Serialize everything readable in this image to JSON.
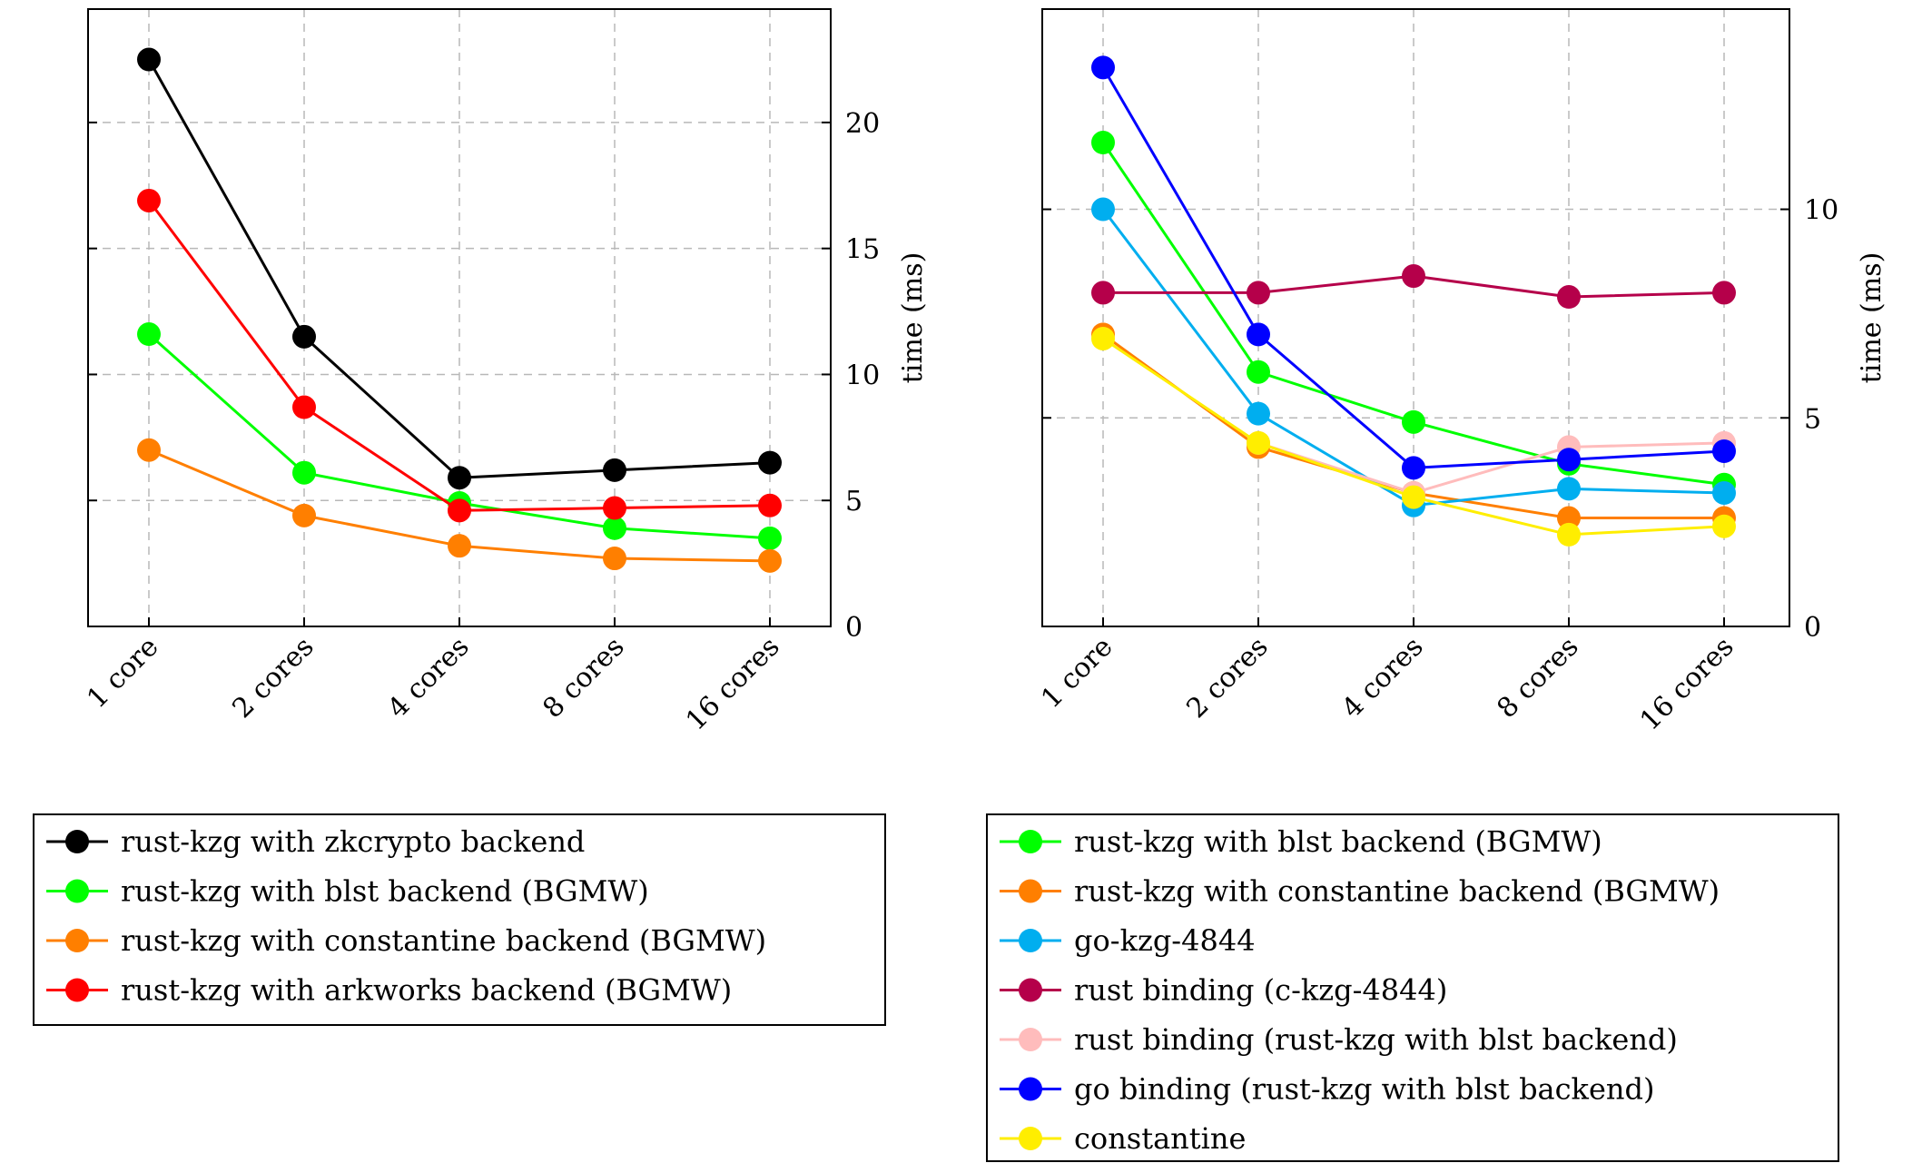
{
  "chart_data": [
    {
      "type": "line",
      "categories": [
        "1 core",
        "2 cores",
        "4 cores",
        "8 cores",
        "16 cores"
      ],
      "ylabel": "time (ms)",
      "ylim": [
        0,
        24.5
      ],
      "yticks": [
        0,
        5,
        10,
        15,
        20
      ],
      "grid": true,
      "legend_position": "below",
      "series": [
        {
          "name": "rust-kzg with zkcrypto backend",
          "color": "#000000",
          "values": [
            22.5,
            11.5,
            5.9,
            6.2,
            6.5
          ]
        },
        {
          "name": "rust-kzg with blst backend (BGMW)",
          "color": "#00ff00",
          "values": [
            11.6,
            6.1,
            4.9,
            3.9,
            3.5
          ]
        },
        {
          "name": "rust-kzg with constantine backend (BGMW)",
          "color": "#ff7f00",
          "values": [
            7.0,
            4.4,
            3.2,
            2.7,
            2.6
          ]
        },
        {
          "name": "rust-kzg with arkworks backend (BGMW)",
          "color": "#ff0000",
          "values": [
            16.9,
            8.7,
            4.6,
            4.7,
            4.8
          ]
        }
      ]
    },
    {
      "type": "line",
      "categories": [
        "1 core",
        "2 cores",
        "4 cores",
        "8 cores",
        "16 cores"
      ],
      "ylabel": "time (ms)",
      "ylim": [
        0,
        14.8
      ],
      "yticks": [
        0,
        5,
        10
      ],
      "grid": true,
      "legend_position": "below",
      "series": [
        {
          "name": "rust-kzg with blst backend (BGMW)",
          "color": "#00ff00",
          "values": [
            11.6,
            6.1,
            4.9,
            3.9,
            3.4
          ]
        },
        {
          "name": "rust-kzg with constantine backend (BGMW)",
          "color": "#ff7f00",
          "values": [
            7.0,
            4.3,
            3.2,
            2.6,
            2.6
          ]
        },
        {
          "name": "go-kzg-4844",
          "color": "#00aeef",
          "values": [
            10.0,
            5.1,
            2.9,
            3.3,
            3.2
          ]
        },
        {
          "name": "rust binding (c-kzg-4844)",
          "color": "#b5004a",
          "values": [
            8.0,
            8.0,
            8.4,
            7.9,
            8.0
          ]
        },
        {
          "name": "rust binding (rust-kzg with blst backend)",
          "color": "#ffbcbc",
          "values": [
            null,
            4.4,
            3.2,
            4.3,
            4.4
          ]
        },
        {
          "name": "go binding (rust-kzg with blst backend)",
          "color": "#0000ff",
          "values": [
            13.4,
            7.0,
            3.8,
            4.0,
            4.2
          ]
        },
        {
          "name": "constantine",
          "color": "#ffee00",
          "values": [
            6.9,
            4.4,
            3.1,
            2.2,
            2.4
          ]
        }
      ]
    }
  ]
}
